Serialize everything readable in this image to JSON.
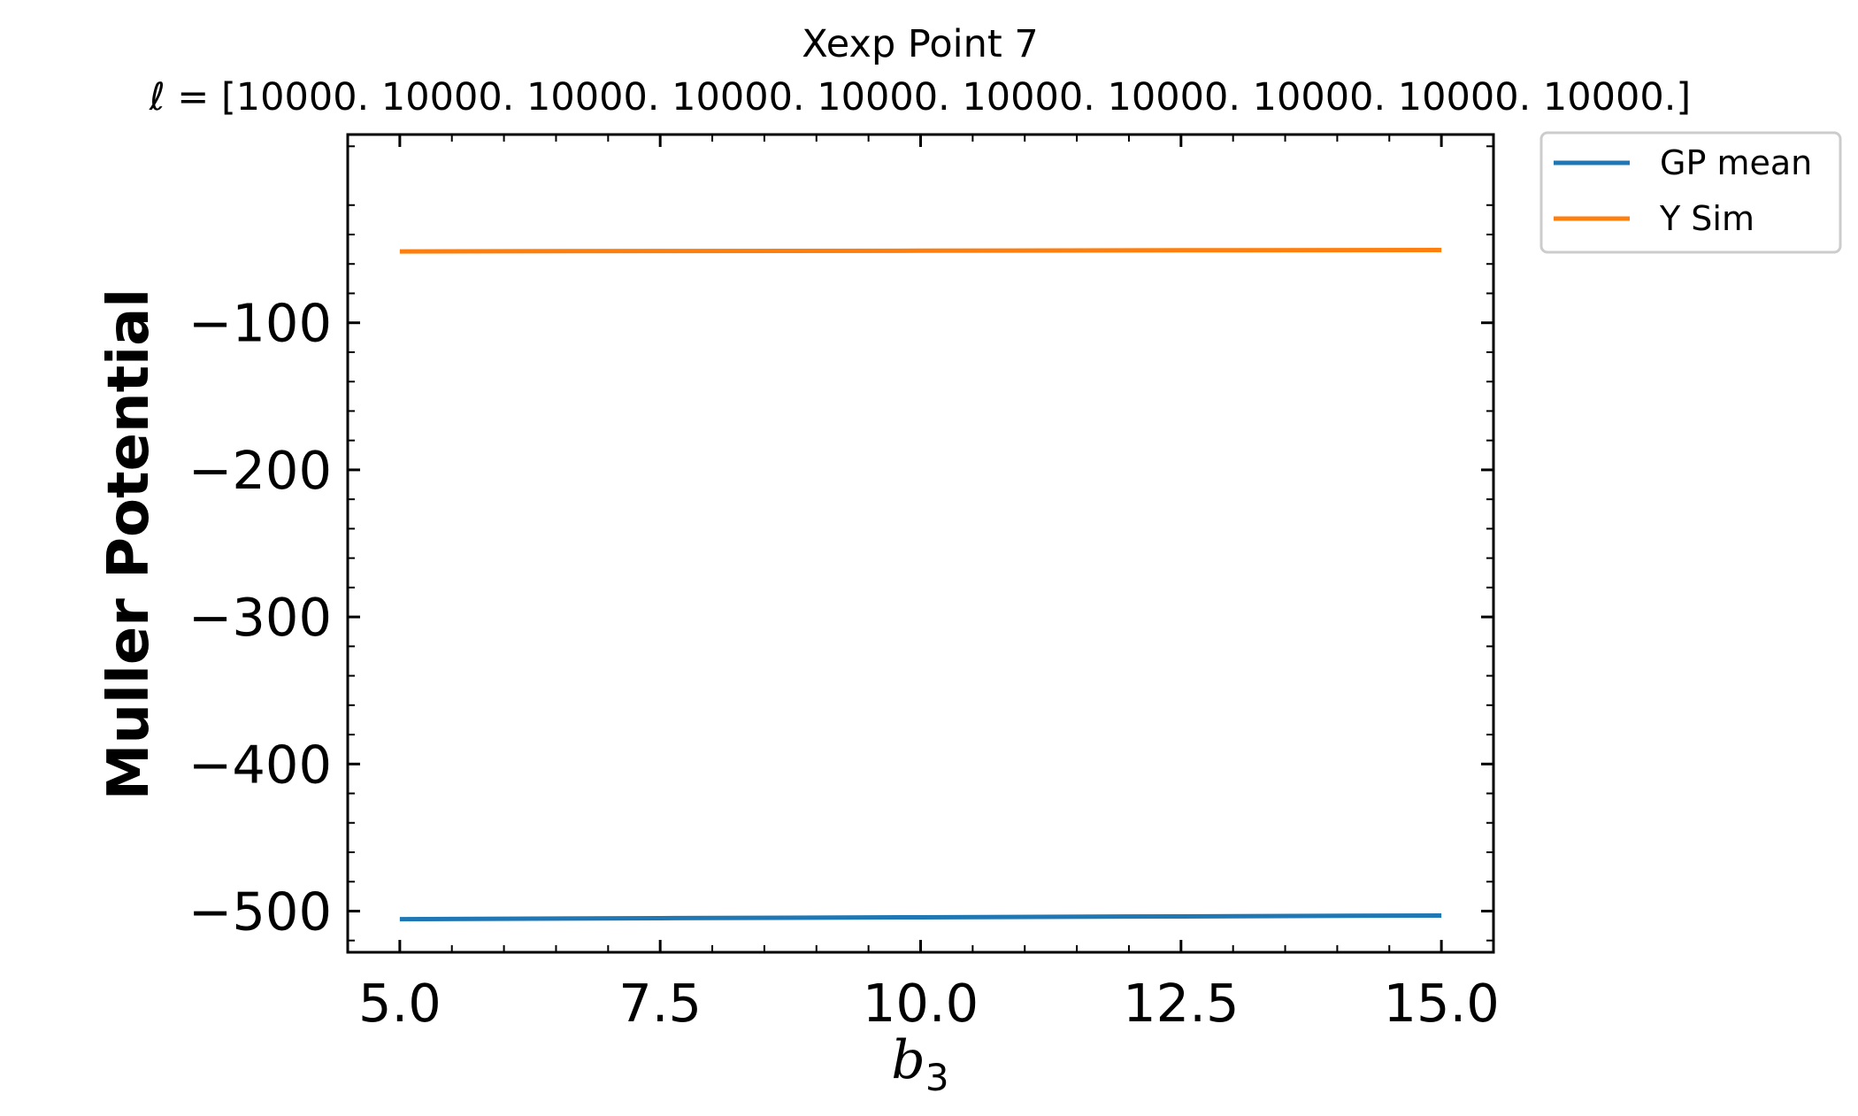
{
  "chart_data": {
    "type": "line",
    "title": "Xexp Point 7",
    "subtitle": "ℓ = [10000. 10000. 10000. 10000. 10000. 10000. 10000. 10000. 10000. 10000.]",
    "xlabel_base": "b",
    "xlabel_sub": "3",
    "ylabel": "Muller Potential",
    "xlim": [
      4.5,
      15.5
    ],
    "ylim": [
      -528,
      28
    ],
    "xticks": [
      5.0,
      7.5,
      10.0,
      12.5,
      15.0
    ],
    "xtick_labels": [
      "5.0",
      "7.5",
      "10.0",
      "12.5",
      "15.0"
    ],
    "yticks": [
      -100,
      -200,
      -300,
      -400,
      -500
    ],
    "ytick_labels": [
      "−100",
      "−200",
      "−300",
      "−400",
      "−500"
    ],
    "legend_position": "outside-right-top",
    "grid": false,
    "series": [
      {
        "name": "GP mean",
        "color": "#1f77b4",
        "x": [
          5.0,
          7.5,
          10.0,
          12.5,
          15.0
        ],
        "y": [
          -505.5,
          -504.8,
          -504.2,
          -503.6,
          -503.0
        ]
      },
      {
        "name": "Y Sim",
        "color": "#ff7f0e",
        "x": [
          5.0,
          7.5,
          10.0,
          12.5,
          15.0
        ],
        "y": [
          -51.5,
          -51.2,
          -51.0,
          -50.7,
          -50.5
        ]
      }
    ]
  }
}
